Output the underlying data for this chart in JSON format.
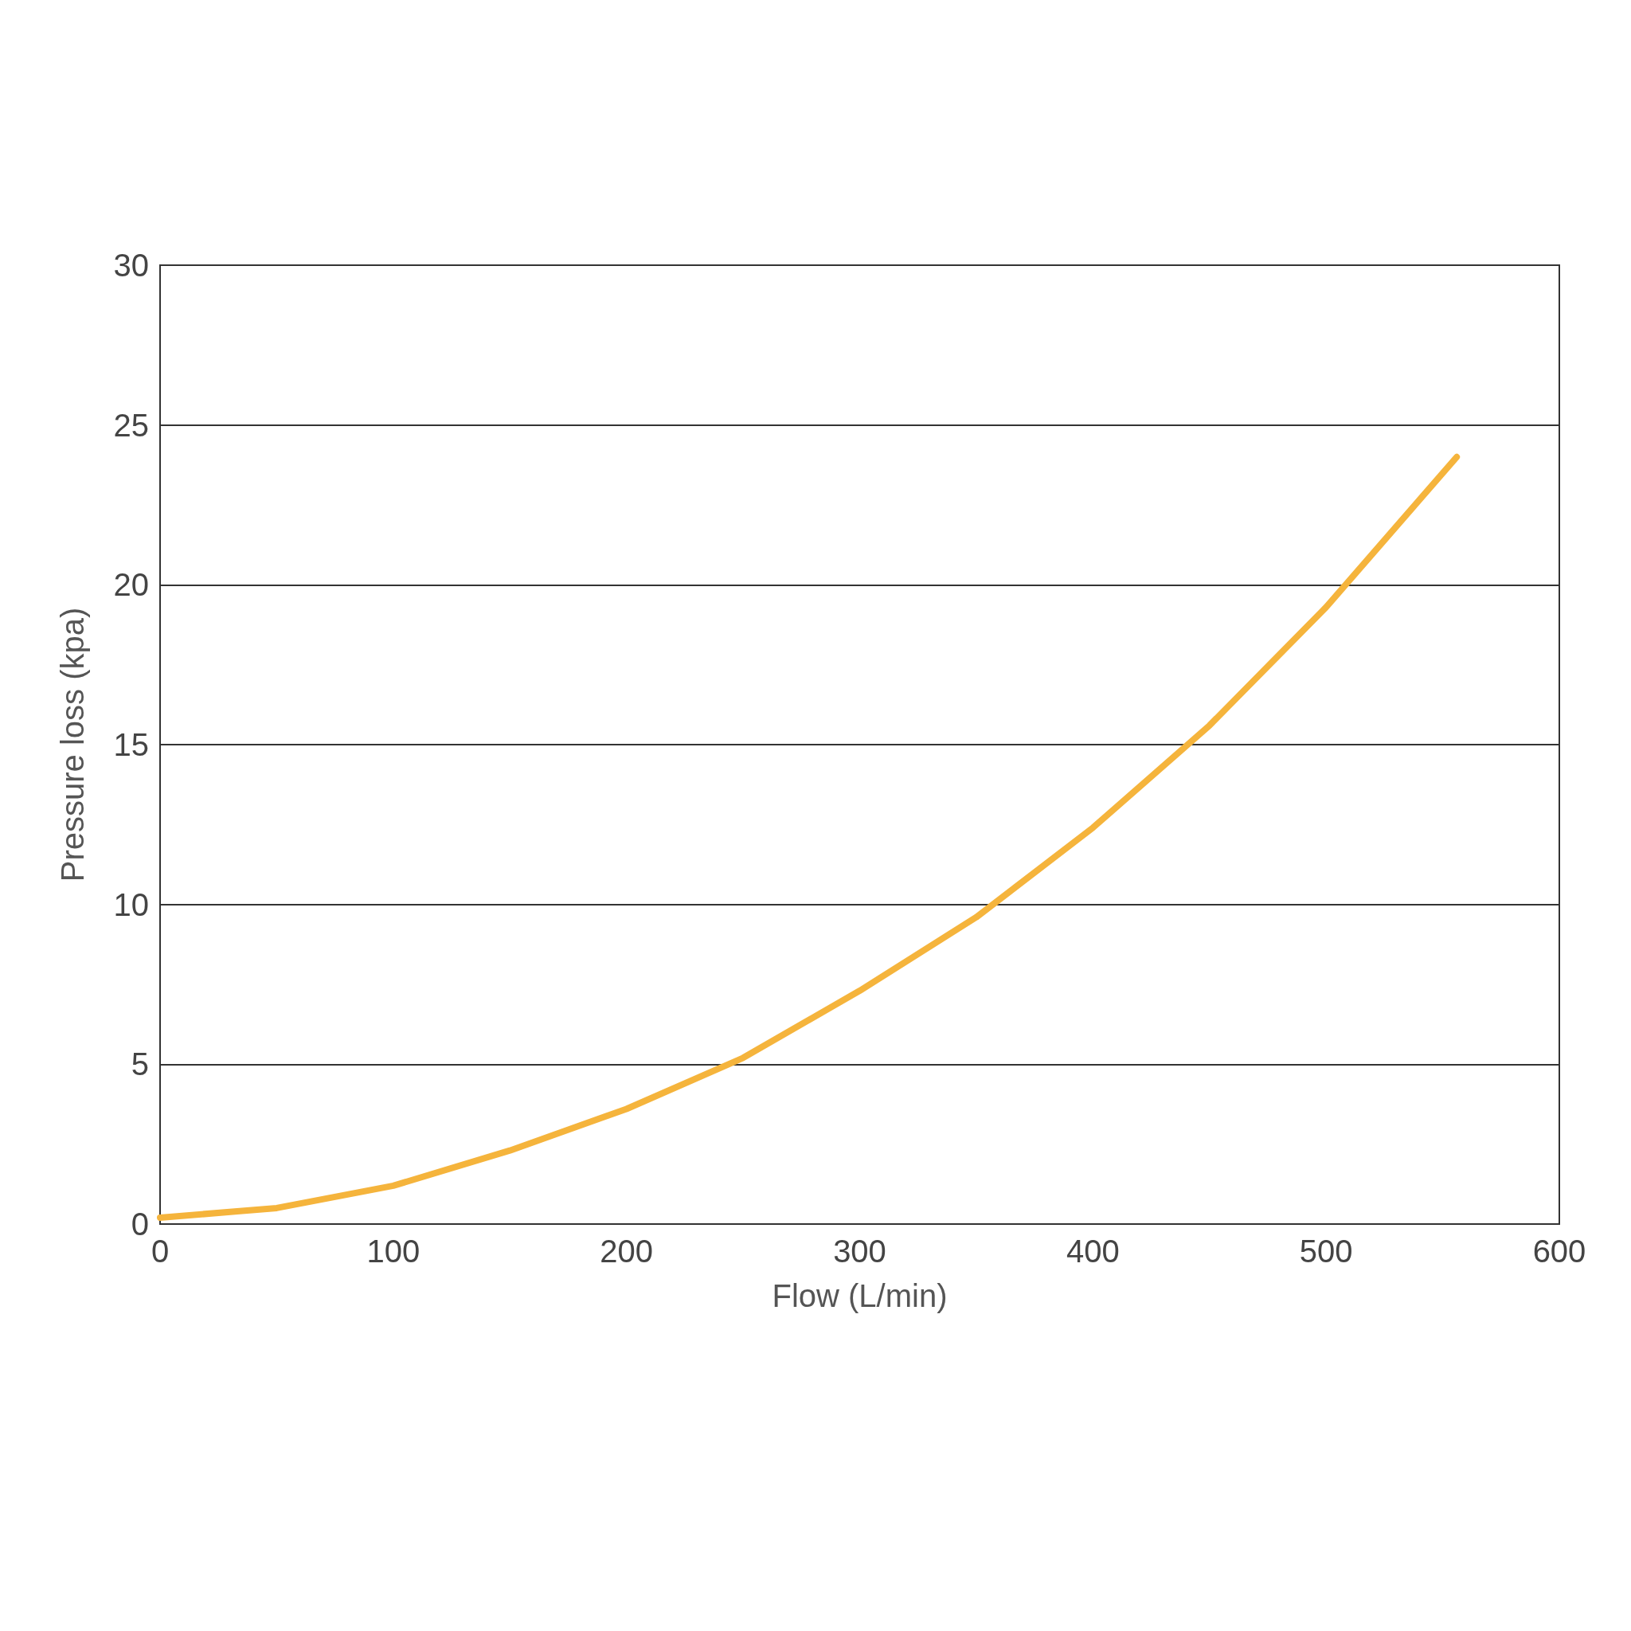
{
  "chart_data": {
    "type": "line",
    "xlabel": "Flow (L/min)",
    "ylabel": "Pressure loss (kpa)",
    "x": [
      0,
      50,
      100,
      150,
      200,
      250,
      300,
      350,
      400,
      450,
      500,
      556
    ],
    "series": [
      {
        "color": "#f5b43c",
        "values": [
          0.2,
          0.5,
          1.2,
          2.3,
          3.6,
          5.2,
          7.3,
          9.6,
          12.4,
          15.6,
          19.3,
          24.0
        ]
      }
    ],
    "xlim": [
      0,
      600
    ],
    "xticks": [
      0,
      100,
      200,
      300,
      400,
      500,
      600
    ],
    "ylim": [
      0,
      30
    ],
    "yticks": [
      0,
      5,
      10,
      15,
      20,
      25,
      30
    ],
    "grid": "y",
    "line_style": "solid"
  }
}
